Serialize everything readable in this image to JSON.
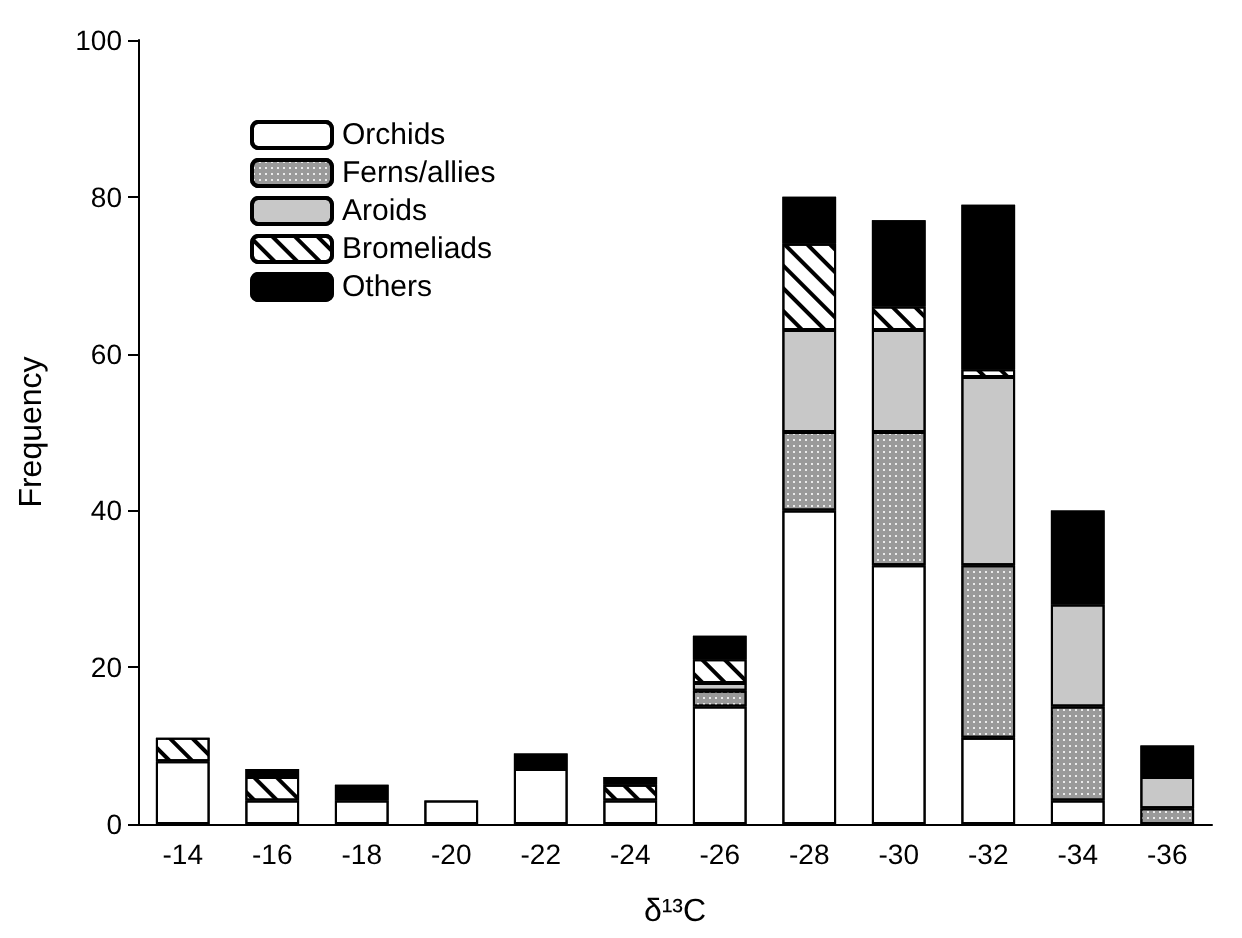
{
  "chart_data": {
    "type": "bar",
    "stacked": true,
    "xlabel": "δ¹³C",
    "ylabel": "Frequency",
    "categories": [
      "-14",
      "-16",
      "-18",
      "-20",
      "-22",
      "-24",
      "-26",
      "-28",
      "-30",
      "-32",
      "-34",
      "-36"
    ],
    "ylim": [
      0,
      100
    ],
    "yticks": [
      0,
      20,
      40,
      60,
      80,
      100
    ],
    "grid": false,
    "legend": "top left",
    "series": [
      {
        "name": "Orchids",
        "color": "#ffffff",
        "values": [
          8,
          3,
          3,
          3,
          7,
          3,
          15,
          40,
          33,
          11,
          3,
          0
        ]
      },
      {
        "name": "Ferns/allies",
        "color": "#9a9a9a",
        "values": [
          0,
          0,
          0,
          0,
          0,
          0,
          2,
          10,
          17,
          22,
          12,
          2
        ]
      },
      {
        "name": "Aroids",
        "color": "#c8c8c8",
        "values": [
          0,
          0,
          0,
          0,
          0,
          0,
          1,
          13,
          13,
          24,
          13,
          4
        ]
      },
      {
        "name": "Bromeliads",
        "color": "#ffffff",
        "values": [
          3,
          3,
          0,
          0,
          0,
          2,
          3,
          11,
          3,
          1,
          0,
          0
        ]
      },
      {
        "name": "Others",
        "color": "#000000",
        "values": [
          0,
          1,
          2,
          0,
          2,
          1,
          3,
          6,
          11,
          21,
          12,
          4
        ]
      }
    ]
  }
}
